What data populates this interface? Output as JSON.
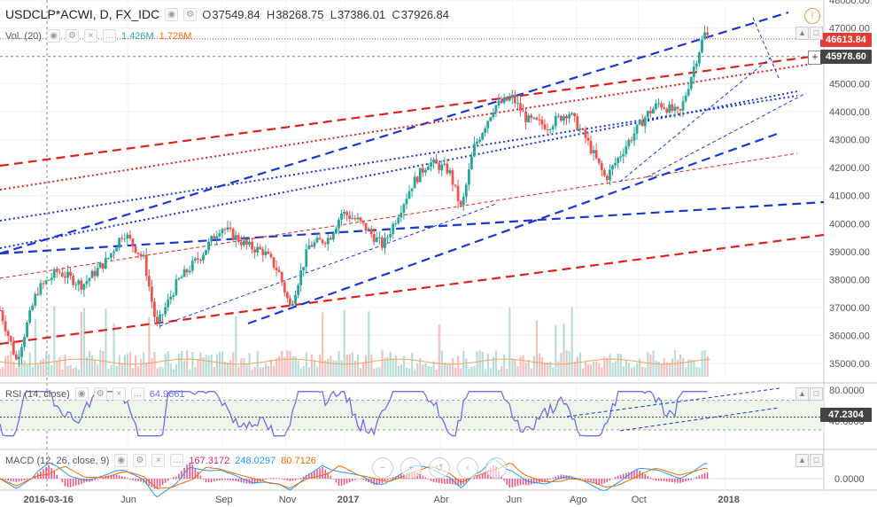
{
  "header": {
    "symbol": "USDCLP*ACWI, D, FX_IDC",
    "open_label": "O",
    "open": "37549.84",
    "high_label": "H",
    "high": "38268.75",
    "low_label": "L",
    "low": "37386.01",
    "close_label": "C",
    "close": "37926.84"
  },
  "volume": {
    "label": "Vol. (20)",
    "value1": "1.426M",
    "value2": "1.726M",
    "color1": "#26a69a",
    "color2": "#ef6c00"
  },
  "rsi": {
    "label": "RSI (14, close)",
    "value": "64.9661",
    "tag": "47.2304"
  },
  "macd": {
    "label": "MACD (12, 26, close, 9)",
    "v1": "167.3172",
    "v2": "248.0297",
    "v3": "80.7126",
    "c1": "#e91e63",
    "c2": "#2196f3",
    "c3": "#ef6c00"
  },
  "price_tags": {
    "last": "46613.84",
    "crosshair": "45978.60"
  },
  "colors": {
    "up": "#26a69a",
    "down": "#ef5350",
    "blue_channel": "#1a36d6",
    "red_channel": "#e0201c",
    "rsi_line": "#6f6fe8",
    "last_tag": "#e53935",
    "cross_tag": "#444444"
  },
  "chart_data": {
    "type": "candlestick",
    "symbol": "USDCLP*ACWI",
    "interval": "D",
    "price_axis": {
      "ylim": [
        34300,
        48000
      ],
      "ticks": [
        "35000.00",
        "36000.00",
        "37000.00",
        "38000.00",
        "39000.00",
        "40000.00",
        "41000.00",
        "42000.00",
        "43000.00",
        "44000.00",
        "45000.00",
        "46000.00",
        "47000.00",
        "48000.00"
      ]
    },
    "x_ticks": [
      {
        "label": "2016-03-16",
        "t": 0.05
      },
      {
        "label": "Jun",
        "t": 0.155
      },
      {
        "label": "Sep",
        "t": 0.27
      },
      {
        "label": "Nov",
        "t": 0.347
      },
      {
        "label": "2017",
        "t": 0.418
      },
      {
        "label": "Abr",
        "t": 0.535
      },
      {
        "label": "Jun",
        "t": 0.623
      },
      {
        "label": "Ago",
        "t": 0.7
      },
      {
        "label": "Oct",
        "t": 0.775
      },
      {
        "label": "2018",
        "t": 0.88
      }
    ],
    "price_path": [
      [
        0.0,
        36900
      ],
      [
        0.02,
        35100
      ],
      [
        0.045,
        37600
      ],
      [
        0.07,
        38300
      ],
      [
        0.1,
        37800
      ],
      [
        0.13,
        38700
      ],
      [
        0.15,
        39700
      ],
      [
        0.175,
        38700
      ],
      [
        0.19,
        36300
      ],
      [
        0.215,
        37900
      ],
      [
        0.245,
        38900
      ],
      [
        0.268,
        39900
      ],
      [
        0.3,
        39200
      ],
      [
        0.32,
        39000
      ],
      [
        0.338,
        38300
      ],
      [
        0.352,
        37000
      ],
      [
        0.375,
        39200
      ],
      [
        0.4,
        39500
      ],
      [
        0.415,
        40400
      ],
      [
        0.435,
        40100
      ],
      [
        0.465,
        39200
      ],
      [
        0.5,
        41400
      ],
      [
        0.52,
        42200
      ],
      [
        0.545,
        41900
      ],
      [
        0.56,
        40500
      ],
      [
        0.575,
        42700
      ],
      [
        0.6,
        44200
      ],
      [
        0.622,
        44500
      ],
      [
        0.64,
        43700
      ],
      [
        0.665,
        43500
      ],
      [
        0.69,
        44000
      ],
      [
        0.71,
        43100
      ],
      [
        0.735,
        41600
      ],
      [
        0.76,
        42800
      ],
      [
        0.785,
        43900
      ],
      [
        0.8,
        44300
      ],
      [
        0.825,
        43900
      ],
      [
        0.84,
        45400
      ],
      [
        0.855,
        46800
      ],
      [
        0.862,
        46600
      ]
    ],
    "rsi": {
      "levels": [
        70,
        30
      ],
      "ticks": [
        "80.0000",
        "40.0000"
      ],
      "last": 64.9661,
      "reference": 47.2304
    },
    "macd": {
      "macd": 167.3172,
      "signal": 248.0297,
      "histogram": 80.7126,
      "ticks": [
        "0.0000"
      ]
    }
  }
}
